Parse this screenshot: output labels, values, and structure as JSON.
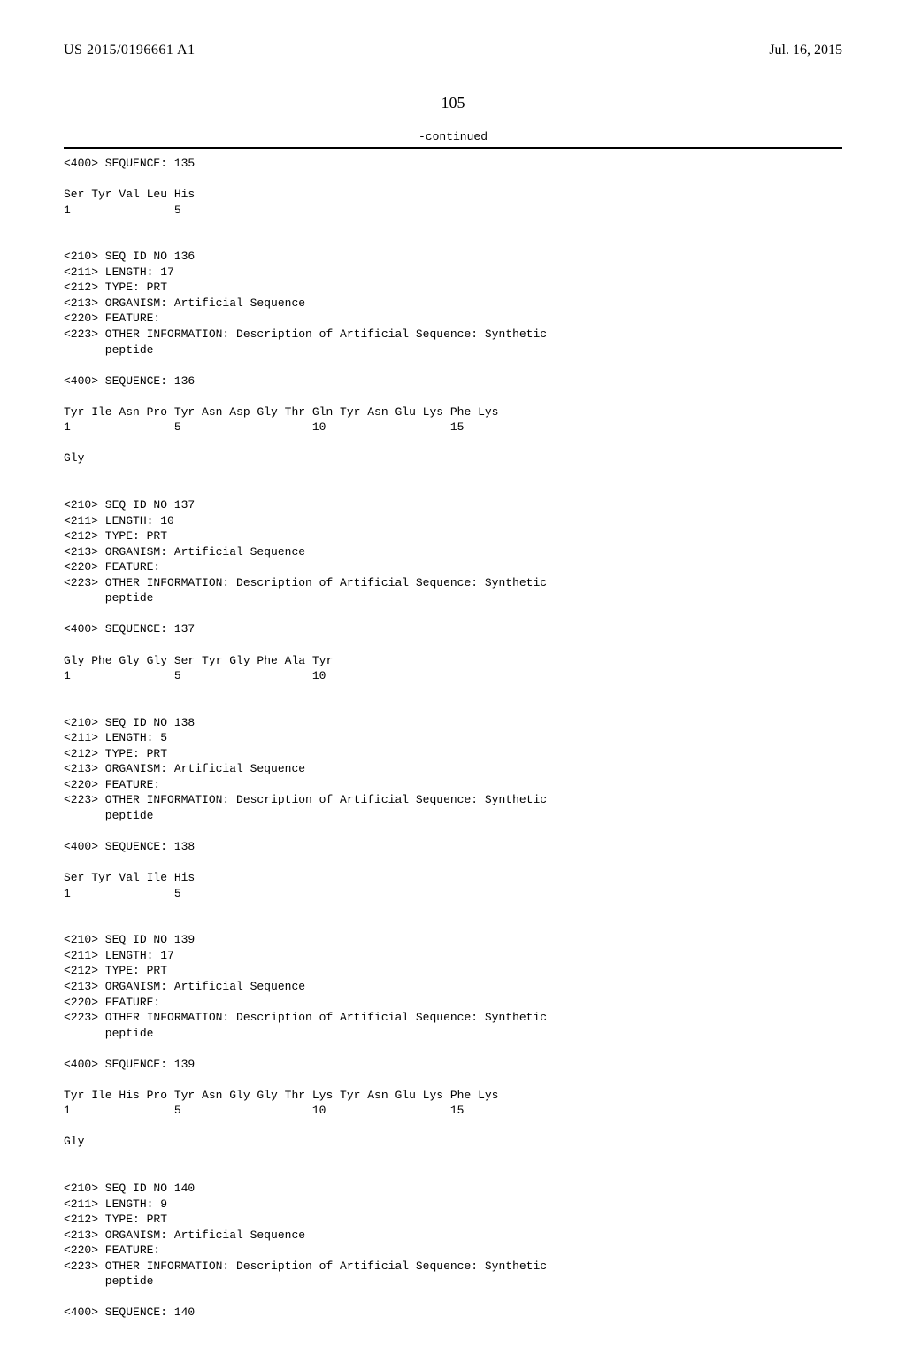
{
  "header": {
    "publication_number": "US 2015/0196661 A1",
    "date": "Jul. 16, 2015"
  },
  "page_number": "105",
  "continued_label": "-continued",
  "sequences": [
    {
      "header_lines": [
        "<400> SEQUENCE: 135"
      ],
      "residue_lines": [
        "Ser Tyr Val Leu His",
        "1               5"
      ]
    },
    {
      "header_lines": [
        "<210> SEQ ID NO 136",
        "<211> LENGTH: 17",
        "<212> TYPE: PRT",
        "<213> ORGANISM: Artificial Sequence",
        "<220> FEATURE:",
        "<223> OTHER INFORMATION: Description of Artificial Sequence: Synthetic",
        "      peptide"
      ],
      "seq_line": "<400> SEQUENCE: 136",
      "residue_lines": [
        "Tyr Ile Asn Pro Tyr Asn Asp Gly Thr Gln Tyr Asn Glu Lys Phe Lys",
        "1               5                   10                  15",
        "",
        "Gly"
      ]
    },
    {
      "header_lines": [
        "<210> SEQ ID NO 137",
        "<211> LENGTH: 10",
        "<212> TYPE: PRT",
        "<213> ORGANISM: Artificial Sequence",
        "<220> FEATURE:",
        "<223> OTHER INFORMATION: Description of Artificial Sequence: Synthetic",
        "      peptide"
      ],
      "seq_line": "<400> SEQUENCE: 137",
      "residue_lines": [
        "Gly Phe Gly Gly Ser Tyr Gly Phe Ala Tyr",
        "1               5                   10"
      ]
    },
    {
      "header_lines": [
        "<210> SEQ ID NO 138",
        "<211> LENGTH: 5",
        "<212> TYPE: PRT",
        "<213> ORGANISM: Artificial Sequence",
        "<220> FEATURE:",
        "<223> OTHER INFORMATION: Description of Artificial Sequence: Synthetic",
        "      peptide"
      ],
      "seq_line": "<400> SEQUENCE: 138",
      "residue_lines": [
        "Ser Tyr Val Ile His",
        "1               5"
      ]
    },
    {
      "header_lines": [
        "<210> SEQ ID NO 139",
        "<211> LENGTH: 17",
        "<212> TYPE: PRT",
        "<213> ORGANISM: Artificial Sequence",
        "<220> FEATURE:",
        "<223> OTHER INFORMATION: Description of Artificial Sequence: Synthetic",
        "      peptide"
      ],
      "seq_line": "<400> SEQUENCE: 139",
      "residue_lines": [
        "Tyr Ile His Pro Tyr Asn Gly Gly Thr Lys Tyr Asn Glu Lys Phe Lys",
        "1               5                   10                  15",
        "",
        "Gly"
      ]
    },
    {
      "header_lines": [
        "<210> SEQ ID NO 140",
        "<211> LENGTH: 9",
        "<212> TYPE: PRT",
        "<213> ORGANISM: Artificial Sequence",
        "<220> FEATURE:",
        "<223> OTHER INFORMATION: Description of Artificial Sequence: Synthetic",
        "      peptide"
      ],
      "seq_line": "<400> SEQUENCE: 140",
      "residue_lines": []
    }
  ]
}
